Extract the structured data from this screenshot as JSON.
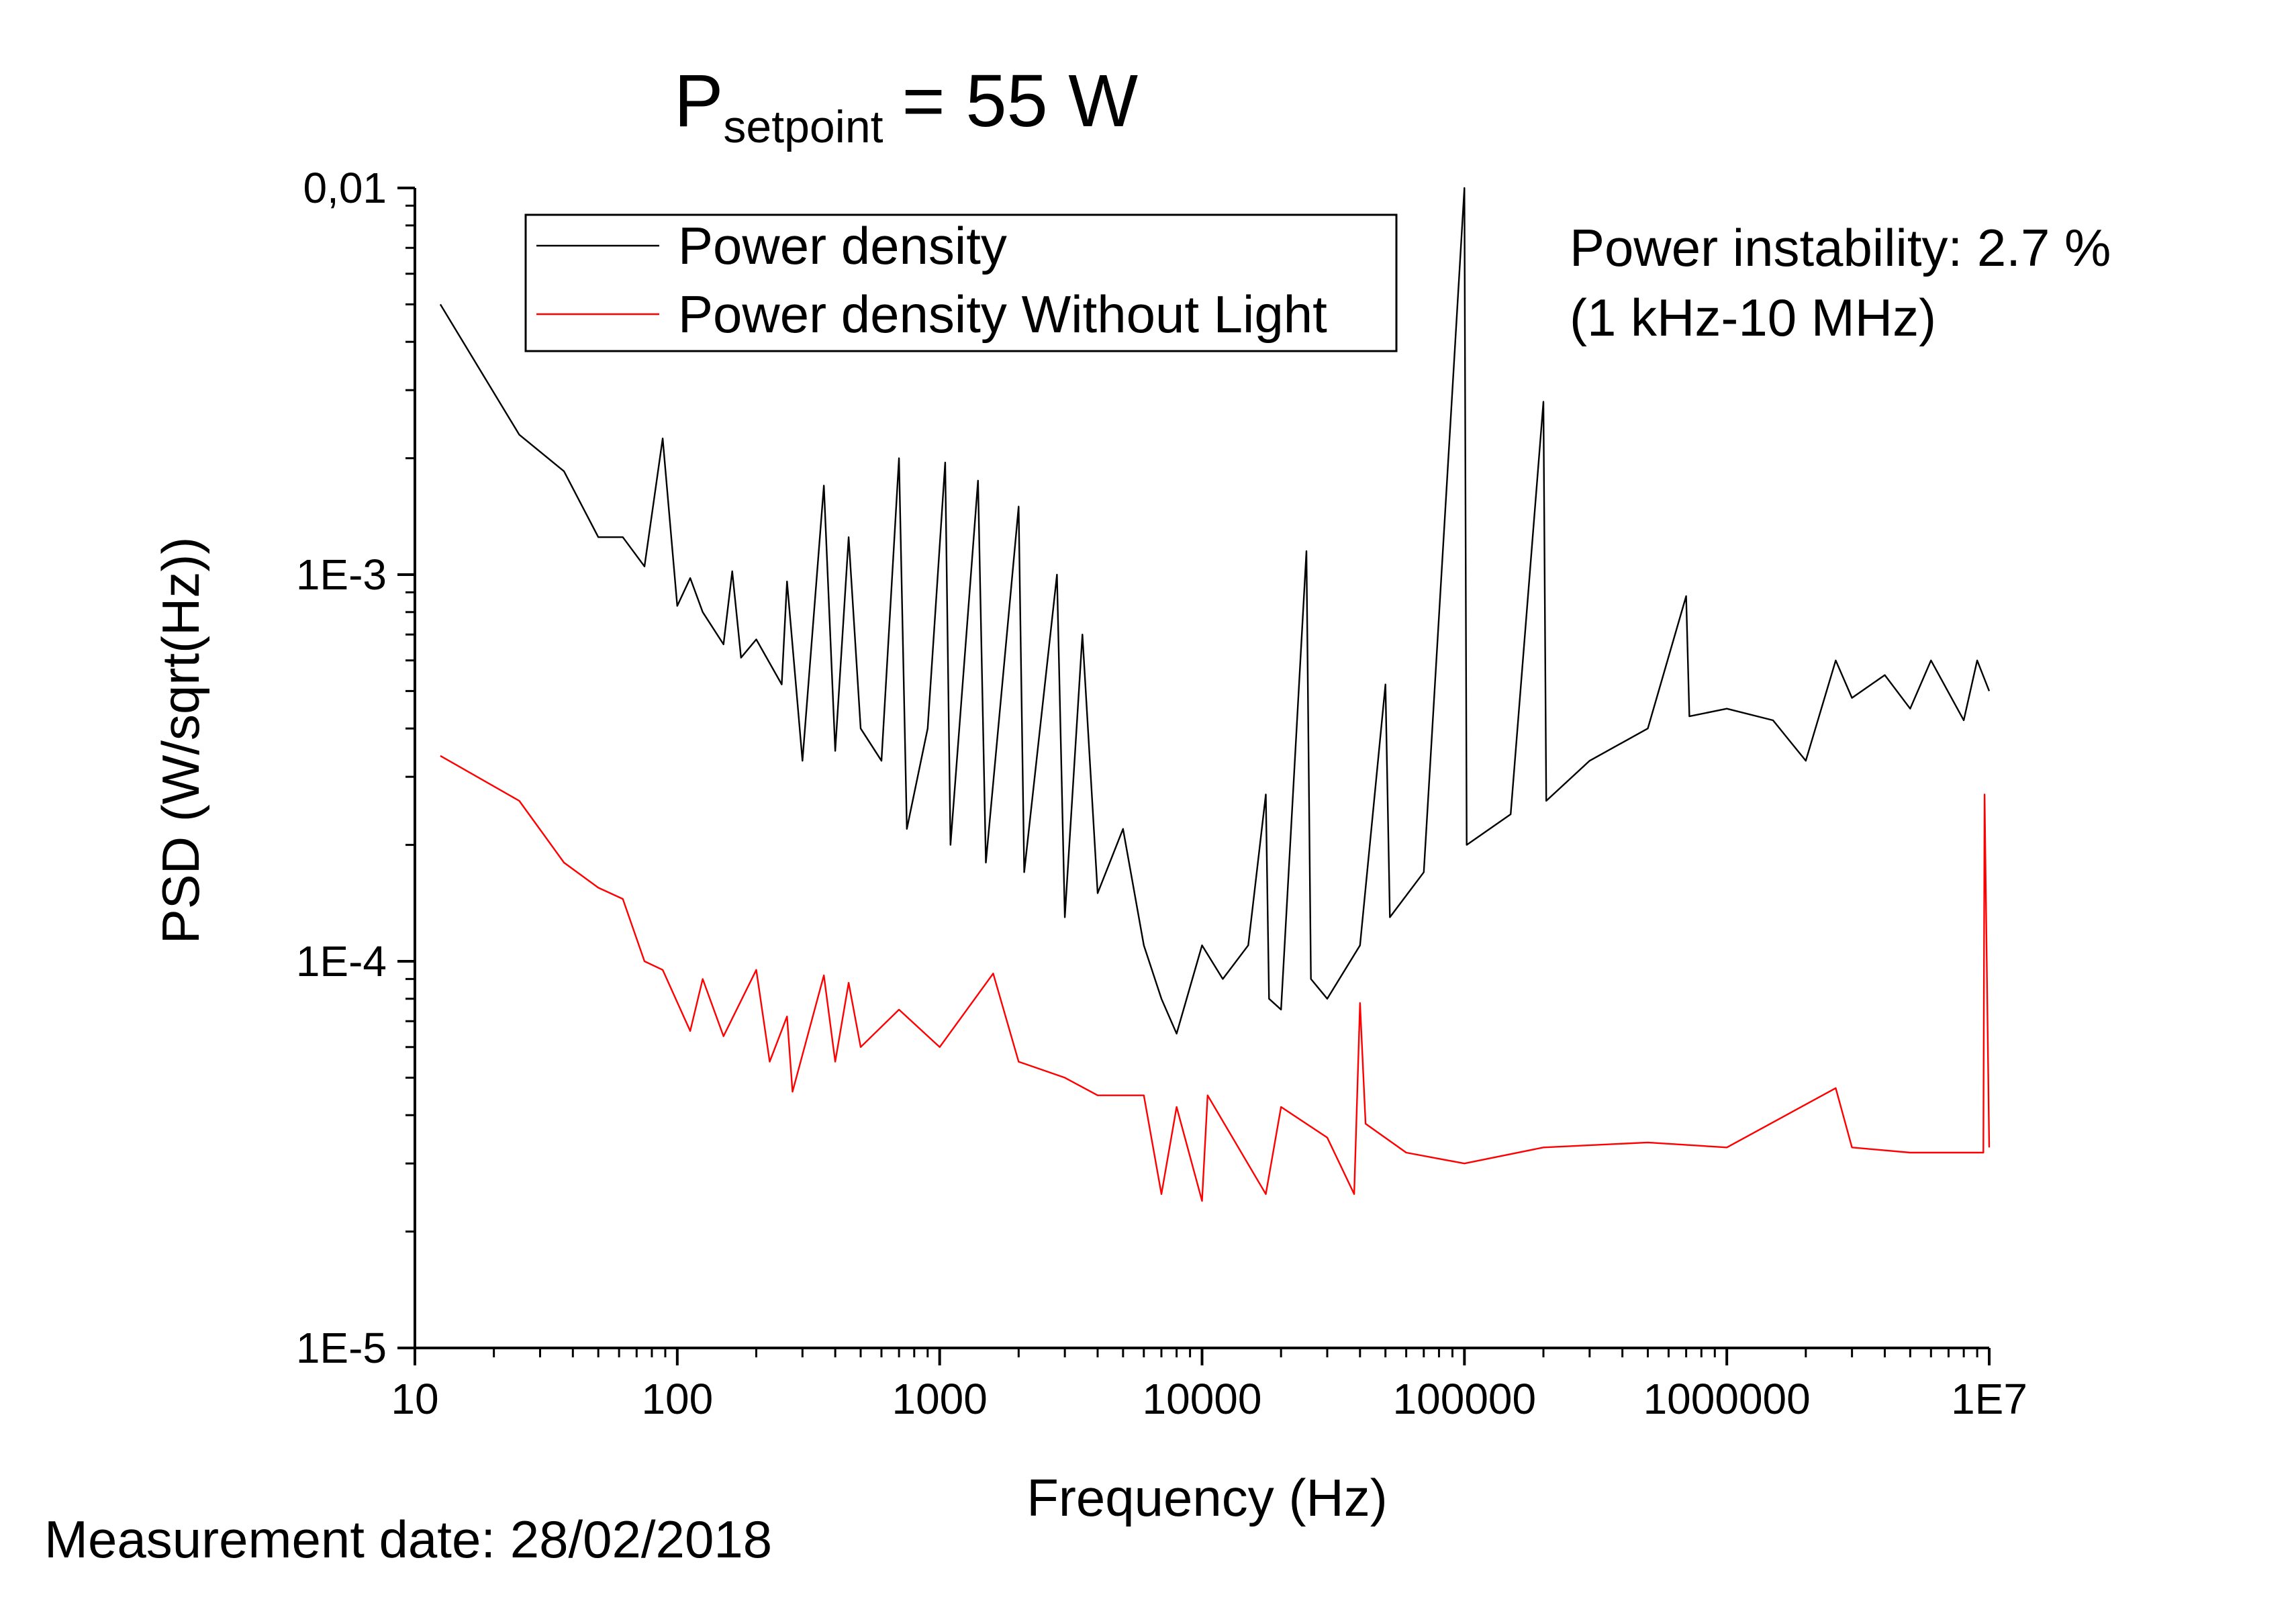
{
  "chart_data": {
    "type": "line",
    "title": [
      "P",
      "setpoint",
      "= 55 W"
    ],
    "x_label": "Frequency (Hz)",
    "y_label": "PSD (W/sqrt(Hz))",
    "annotations": [
      "Power instability: 2.7 %",
      "(1 kHz-10 MHz)",
      "Measurement date: 28/02/2018"
    ],
    "log_x": true,
    "log_y": true,
    "grid": false,
    "legend": "top-left",
    "xlim": [
      10,
      10000000
    ],
    "ylim": [
      1e-05,
      0.01
    ],
    "xticks": [
      10,
      100,
      1000,
      10000,
      100000,
      1000000,
      {
        "value": 10000000,
        "label": "1E7"
      }
    ],
    "yticks": [
      {
        "value": 1e-05,
        "label": "1E-5"
      },
      {
        "value": 0.0001,
        "label": "1E-4"
      },
      {
        "value": 0.001,
        "label": "1E-3"
      },
      {
        "value": 0.01,
        "label": "0,01"
      }
    ],
    "series": [
      {
        "name": "Power density",
        "color": "#000000",
        "x": [
          12.5,
          25,
          37,
          50,
          62,
          75,
          88,
          100,
          112,
          125,
          150,
          162,
          175,
          200,
          250,
          262,
          300,
          362,
          400,
          450,
          500,
          600,
          700,
          750,
          900,
          1050,
          1100,
          1400,
          1500,
          2000,
          2100,
          2800,
          3000,
          3500,
          4000,
          5000,
          6000,
          7000,
          8000,
          10000,
          12000,
          15000,
          17500,
          18000,
          20000,
          25000,
          26000,
          30000,
          40000,
          50000,
          52000,
          70000,
          100000,
          102000,
          150000,
          200000,
          205000,
          300000,
          500000,
          700000,
          720000,
          1000000,
          1500000,
          2000000,
          2600000,
          3000000,
          4000000,
          5000000,
          6000000,
          8000000,
          9000000,
          10000000
        ],
        "values": [
          0.005,
          0.0023,
          0.00185,
          0.00125,
          0.00125,
          0.00105,
          0.00225,
          0.00083,
          0.00098,
          0.0008,
          0.00066,
          0.00102,
          0.00061,
          0.00068,
          0.00052,
          0.00096,
          0.00033,
          0.0017,
          0.00035,
          0.00125,
          0.0004,
          0.00033,
          0.002,
          0.00022,
          0.0004,
          0.00195,
          0.0002,
          0.00175,
          0.00018,
          0.0015,
          0.00017,
          0.001,
          0.00013,
          0.0007,
          0.00015,
          0.00022,
          0.00011,
          8e-05,
          6.5e-05,
          0.00011,
          9e-05,
          0.00011,
          0.00027,
          8e-05,
          7.5e-05,
          0.00115,
          9e-05,
          8e-05,
          0.00011,
          0.00052,
          0.00013,
          0.00017,
          0.01,
          0.0002,
          0.00024,
          0.0028,
          0.00026,
          0.00033,
          0.0004,
          0.00088,
          0.00043,
          0.00045,
          0.00042,
          0.00033,
          0.0006,
          0.00048,
          0.00055,
          0.00045,
          0.0006,
          0.00042,
          0.0006,
          0.0005
        ]
      },
      {
        "name": "Power density Without Light",
        "color": "#ff0000",
        "x": [
          12.5,
          25,
          37,
          50,
          62,
          75,
          88,
          112,
          125,
          150,
          200,
          225,
          262,
          275,
          362,
          400,
          450,
          500,
          700,
          1000,
          1600,
          2000,
          3000,
          4000,
          6000,
          7000,
          8000,
          10000,
          10500,
          17500,
          20000,
          30000,
          38000,
          40000,
          42000,
          60000,
          100000,
          200000,
          500000,
          1000000,
          2600000,
          3000000,
          5000000,
          9500000,
          9600000,
          10000000
        ],
        "values": [
          0.00034,
          0.00026,
          0.00018,
          0.000155,
          0.000145,
          0.0001,
          9.5e-05,
          6.6e-05,
          9e-05,
          6.4e-05,
          9.5e-05,
          5.5e-05,
          7.2e-05,
          4.6e-05,
          9.2e-05,
          5.5e-05,
          8.8e-05,
          6e-05,
          7.5e-05,
          6e-05,
          9.3e-05,
          5.5e-05,
          5e-05,
          4.5e-05,
          4.5e-05,
          2.5e-05,
          4.2e-05,
          2.4e-05,
          4.5e-05,
          2.5e-05,
          4.2e-05,
          3.5e-05,
          2.5e-05,
          7.8e-05,
          3.8e-05,
          3.2e-05,
          3e-05,
          3.3e-05,
          3.4e-05,
          3.3e-05,
          4.7e-05,
          3.3e-05,
          3.2e-05,
          3.2e-05,
          0.00027,
          3.3e-05
        ]
      }
    ]
  }
}
